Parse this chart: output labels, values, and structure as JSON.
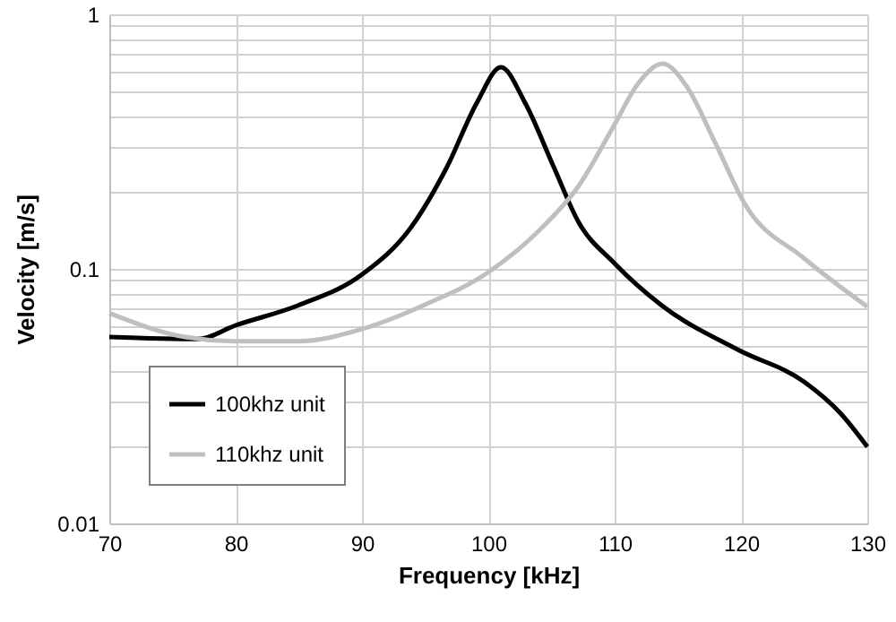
{
  "chart_data": {
    "type": "line",
    "xlabel": "Frequency [kHz]",
    "ylabel": "Velocity [m/s]",
    "log": "y",
    "grid": true,
    "legend": "bottom left",
    "line_style": "solid",
    "marker": "none",
    "xlim": [
      70,
      130
    ],
    "xticks": [
      70,
      80,
      90,
      100,
      110,
      120,
      130
    ],
    "ylim": [
      0.01,
      1
    ],
    "yticks": [
      0.01,
      {
        "value": 0.02,
        "label": null
      },
      {
        "value": 0.03,
        "label": null
      },
      {
        "value": 0.04,
        "label": null
      },
      {
        "value": 0.05,
        "label": null
      },
      {
        "value": 0.06,
        "label": null
      },
      {
        "value": 0.07,
        "label": null
      },
      {
        "value": 0.08,
        "label": null
      },
      {
        "value": 0.09,
        "label": null
      },
      0.1,
      {
        "value": 0.2,
        "label": null
      },
      {
        "value": 0.3,
        "label": null
      },
      {
        "value": 0.4,
        "label": null
      },
      {
        "value": 0.5,
        "label": null
      },
      {
        "value": 0.6,
        "label": null
      },
      {
        "value": 0.7,
        "label": null
      },
      {
        "value": 0.8,
        "label": null
      },
      {
        "value": 0.9,
        "label": null
      },
      1
    ],
    "series": [
      {
        "name": "100khz unit",
        "color": "#000000",
        "x": [
          70,
          77,
          80,
          85,
          90,
          93.9,
          96.7,
          99.1,
          101,
          102.9,
          105.2,
          107.1,
          110,
          113.7,
          119.8,
          125,
          127.9,
          130
        ],
        "values": [
          0.054,
          0.053,
          0.06,
          0.072,
          0.095,
          0.146,
          0.25,
          0.45,
          0.62,
          0.45,
          0.25,
          0.154,
          0.105,
          0.072,
          0.048,
          0.036,
          0.027,
          0.02
        ]
      },
      {
        "name": "110khz unit",
        "color": "#bfbfbf",
        "x": [
          70,
          76,
          80,
          85,
          90,
          94.9,
          100,
          104.3,
          107.1,
          110,
          111.8,
          113.8,
          115.6,
          118,
          120.3,
          125,
          130
        ],
        "values": [
          0.067,
          0.054,
          0.052,
          0.052,
          0.058,
          0.072,
          0.097,
          0.146,
          0.21,
          0.37,
          0.53,
          0.64,
          0.53,
          0.31,
          0.18,
          0.11,
          0.071
        ]
      }
    ]
  }
}
